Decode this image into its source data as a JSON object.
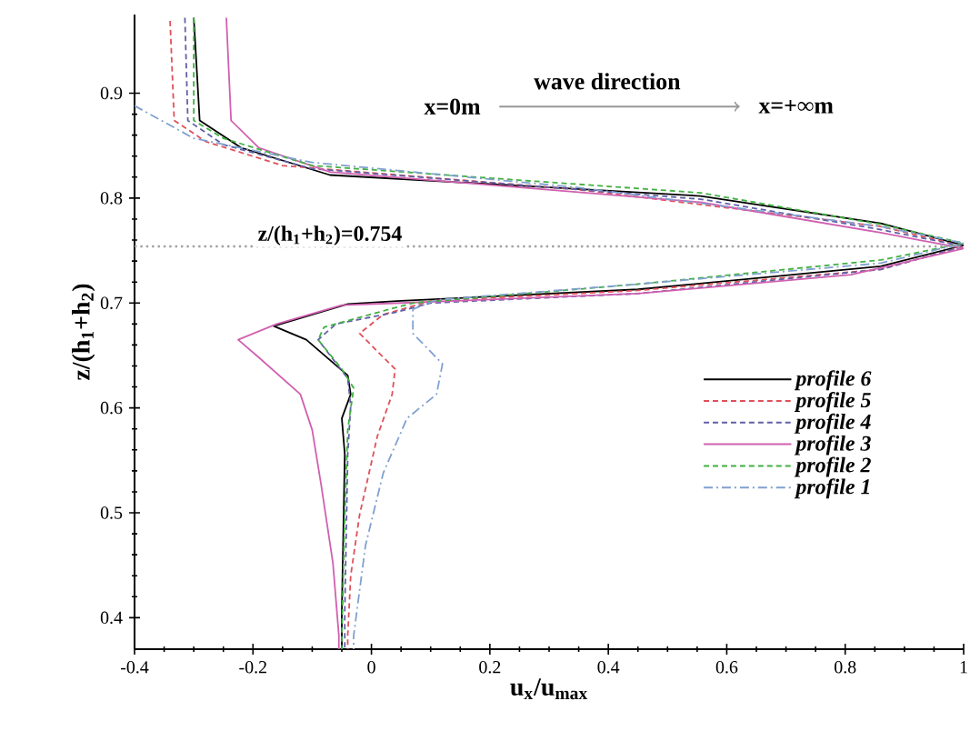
{
  "chart_data": {
    "type": "line",
    "xlabel": "u$_{x}$/u$_{max}$",
    "ylabel": "z/(h$_{1}$+h$_{2}$)",
    "xlim": [
      -0.4,
      1
    ],
    "ylim": [
      0.37,
      0.975
    ],
    "xticks": [
      -0.4,
      -0.2,
      0,
      0.2,
      0.4,
      0.6,
      0.8,
      1
    ],
    "yticks": [
      0.4,
      0.5,
      0.6,
      0.7,
      0.8,
      0.9
    ],
    "grid": false,
    "legend": "right",
    "marker": "none",
    "annotations": [
      "wave direction",
      "x=0m",
      "x=+∞m"
    ],
    "ref_lines": [
      {
        "axis": "y",
        "value": 0.754,
        "label": "z/(h$_{1}$+h$_{2}$)=0.754",
        "color": "#a0a0a0",
        "line_style": "dotted"
      }
    ],
    "series": [
      {
        "name": "profile 6",
        "color": "#000000",
        "line_style": "solid",
        "x": [
          -0.3,
          -0.29,
          -0.22,
          -0.07,
          0.556,
          0.86,
          1.0,
          0.86,
          0.45,
          0.05,
          -0.04,
          -0.165,
          -0.11,
          -0.04,
          -0.035,
          -0.05,
          -0.045,
          -0.05,
          -0.05
        ],
        "values": [
          0.972,
          0.874,
          0.848,
          0.822,
          0.802,
          0.776,
          0.755,
          0.735,
          0.713,
          0.702,
          0.699,
          0.678,
          0.665,
          0.631,
          0.613,
          0.59,
          0.556,
          0.406,
          0.37
        ]
      },
      {
        "name": "profile 5",
        "color": "#e0505a",
        "line_style": "dashed",
        "x": [
          -0.34,
          -0.333,
          -0.28,
          -0.15,
          0.35,
          0.86,
          1.0,
          0.86,
          0.45,
          0.1,
          0.02,
          -0.02,
          0.04,
          0.035,
          0.01,
          -0.02,
          -0.035,
          -0.04,
          -0.04
        ],
        "values": [
          0.969,
          0.874,
          0.854,
          0.831,
          0.808,
          0.773,
          0.754,
          0.732,
          0.712,
          0.702,
          0.689,
          0.671,
          0.637,
          0.613,
          0.573,
          0.498,
          0.44,
          0.383,
          0.37
        ]
      },
      {
        "name": "profile 4",
        "color": "#6060a8",
        "line_style": "dashed",
        "x": [
          -0.315,
          -0.31,
          -0.25,
          -0.1,
          0.556,
          0.86,
          1.0,
          0.86,
          0.45,
          0.1,
          0.04,
          -0.06,
          -0.09,
          -0.04,
          -0.035,
          -0.04,
          -0.045,
          -0.045
        ],
        "values": [
          0.972,
          0.874,
          0.851,
          0.828,
          0.799,
          0.77,
          0.754,
          0.732,
          0.709,
          0.7,
          0.691,
          0.68,
          0.665,
          0.628,
          0.602,
          0.556,
          0.406,
          0.37
        ]
      },
      {
        "name": "profile 3",
        "color": "#d060b0",
        "line_style": "solid",
        "x": [
          -0.245,
          -0.237,
          -0.19,
          -0.07,
          0.556,
          0.86,
          1.0,
          0.81,
          0.45,
          0.05,
          -0.05,
          -0.16,
          -0.225,
          -0.19,
          -0.12,
          -0.1,
          -0.085,
          -0.065,
          -0.055,
          -0.055
        ],
        "values": [
          0.972,
          0.874,
          0.848,
          0.825,
          0.796,
          0.767,
          0.752,
          0.727,
          0.709,
          0.7,
          0.698,
          0.68,
          0.665,
          0.648,
          0.613,
          0.579,
          0.527,
          0.452,
          0.383,
          0.37
        ]
      },
      {
        "name": "profile 2",
        "color": "#40b040",
        "line_style": "dashed",
        "x": [
          -0.3,
          -0.3,
          -0.25,
          -0.1,
          0.556,
          0.86,
          1.0,
          0.86,
          0.45,
          0.07,
          0.03,
          -0.08,
          -0.09,
          -0.05,
          -0.03,
          -0.04,
          -0.045,
          -0.05,
          -0.05
        ],
        "values": [
          0.972,
          0.874,
          0.857,
          0.831,
          0.805,
          0.775,
          0.757,
          0.741,
          0.718,
          0.7,
          0.694,
          0.677,
          0.665,
          0.637,
          0.619,
          0.579,
          0.498,
          0.383,
          0.37
        ]
      },
      {
        "name": "profile 1",
        "color": "#80a0d0",
        "line_style": "dashdotted",
        "x": [
          -0.4,
          -0.3,
          -0.1,
          0.35,
          0.86,
          1.0,
          0.86,
          0.45,
          0.11,
          0.07,
          0.07,
          0.12,
          0.11,
          0.06,
          0.02,
          -0.01,
          -0.03,
          -0.03
        ],
        "values": [
          0.888,
          0.857,
          0.834,
          0.81,
          0.773,
          0.757,
          0.738,
          0.718,
          0.703,
          0.694,
          0.671,
          0.642,
          0.613,
          0.59,
          0.538,
          0.469,
          0.383,
          0.37
        ]
      }
    ]
  }
}
